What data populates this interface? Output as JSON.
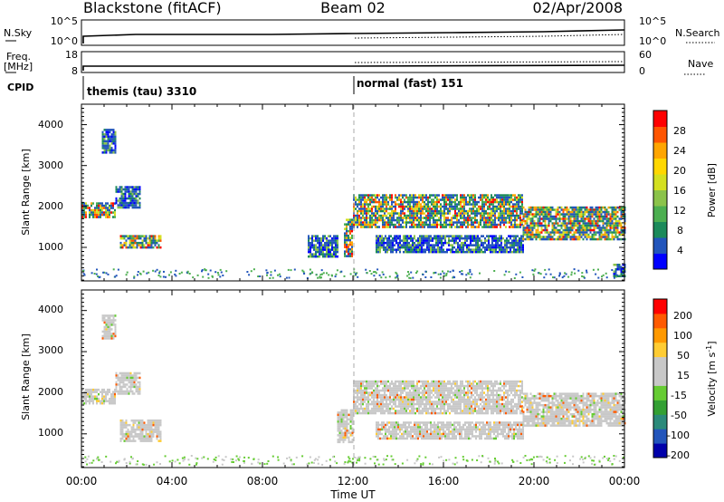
{
  "header": {
    "radar": "Blackstone (fitACF)",
    "beam": "Beam 02",
    "date": "02/Apr/2008"
  },
  "top_panels": {
    "nsky_label": "N.Sky",
    "nsky_ticks": [
      "10^5",
      "10^0"
    ],
    "nsearch_label": "N.Search",
    "nsearch_ticks": [
      "10^5",
      "10^0"
    ],
    "freq_label_1": "Freq.",
    "freq_label_2": "[MHz]",
    "freq_ticks": [
      "18",
      "8"
    ],
    "nave_label": "Nave",
    "nave_ticks": [
      "60",
      "0"
    ],
    "cpid_label": "CPID",
    "cpid_modes": [
      {
        "name": "themis (tau) 3310",
        "start_hour": 0
      },
      {
        "name": "normal (fast) 151",
        "start_hour": 12
      }
    ]
  },
  "axes": {
    "ylabel": "Slant Range [km]",
    "ytick_labels": [
      "4000",
      "3000",
      "2000",
      "1000"
    ],
    "xtick_labels": [
      "00:00",
      "04:00",
      "08:00",
      "12:00",
      "16:00",
      "20:00",
      "00:00"
    ],
    "xlabel": "Time UT"
  },
  "colorbars": {
    "power": {
      "label": "Power [dB]",
      "ticks": [
        "28",
        "24",
        "20",
        "16",
        "12",
        "8",
        "4"
      ],
      "colors": [
        "#0000ff",
        "#2255bb",
        "#1b8a5a",
        "#4caf50",
        "#8bc34a",
        "#d4e020",
        "#ffd700",
        "#ffa500",
        "#ff5500",
        "#ff0000"
      ]
    },
    "velocity": {
      "label": "Velocity [m s^-1]",
      "ticks": [
        "200",
        "100",
        "50",
        "15",
        "-15",
        "-50",
        "-100",
        "-200"
      ],
      "colors": [
        "#ff0000",
        "#ff5a00",
        "#ff9900",
        "#ffcc33",
        "#c8c8c8",
        "#c8c8c8",
        "#66cc33",
        "#33a033",
        "#2b8a7a",
        "#2255bb",
        "#0000aa"
      ]
    }
  },
  "chart_data": [
    {
      "type": "heatmap",
      "title": "Power",
      "xlabel": "Time UT",
      "ylabel": "Slant Range [km]",
      "xlim": [
        0,
        24
      ],
      "ylim": [
        180,
        4500
      ],
      "regions": [
        {
          "t0": 0.9,
          "t1": 1.5,
          "r0": 3300,
          "r1": 3900,
          "level": "mid"
        },
        {
          "t0": 0.0,
          "t1": 1.5,
          "r0": 1750,
          "r1": 2100,
          "level": "high"
        },
        {
          "t0": 1.5,
          "t1": 2.6,
          "r0": 2000,
          "r1": 2500,
          "level": "mid"
        },
        {
          "t0": 1.7,
          "t1": 3.5,
          "r0": 1000,
          "r1": 1300,
          "level": "high"
        },
        {
          "t0": 10.0,
          "t1": 11.3,
          "r0": 800,
          "r1": 1300,
          "level": "mid"
        },
        {
          "t0": 11.6,
          "t1": 12.0,
          "r0": 800,
          "r1": 1700,
          "level": "high"
        },
        {
          "t0": 12.0,
          "t1": 19.5,
          "r0": 1500,
          "r1": 2300,
          "level": "high"
        },
        {
          "t0": 13.0,
          "t1": 19.5,
          "r0": 900,
          "r1": 1300,
          "level": "mid"
        },
        {
          "t0": 19.5,
          "t1": 24.0,
          "r0": 1200,
          "r1": 2000,
          "level": "high"
        },
        {
          "t0": 23.5,
          "t1": 24.0,
          "r0": 300,
          "r1": 600,
          "level": "mid"
        }
      ]
    },
    {
      "type": "heatmap",
      "title": "Velocity",
      "xlabel": "Time UT",
      "ylabel": "Slant Range [km]",
      "xlim": [
        0,
        24
      ],
      "ylim": [
        180,
        4500
      ],
      "regions": [
        {
          "t0": 0.9,
          "t1": 1.5,
          "r0": 3300,
          "r1": 3900,
          "level": "low"
        },
        {
          "t0": 0.0,
          "t1": 1.5,
          "r0": 1750,
          "r1": 2100,
          "level": "low"
        },
        {
          "t0": 1.5,
          "t1": 2.6,
          "r0": 2000,
          "r1": 2500,
          "level": "low"
        },
        {
          "t0": 1.7,
          "t1": 3.5,
          "r0": 850,
          "r1": 1350,
          "level": "low"
        },
        {
          "t0": 11.3,
          "t1": 12.0,
          "r0": 800,
          "r1": 1600,
          "level": "low"
        },
        {
          "t0": 12.0,
          "t1": 19.5,
          "r0": 1500,
          "r1": 2300,
          "level": "low"
        },
        {
          "t0": 13.0,
          "t1": 19.5,
          "r0": 900,
          "r1": 1300,
          "level": "low"
        },
        {
          "t0": 19.5,
          "t1": 24.0,
          "r0": 1200,
          "r1": 2000,
          "level": "low"
        }
      ]
    }
  ]
}
